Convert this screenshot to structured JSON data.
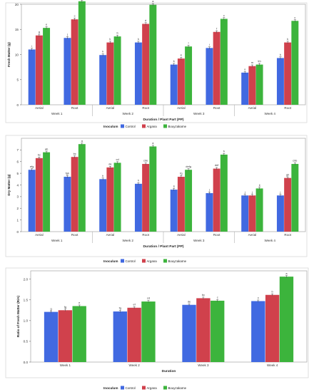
{
  "figure": {
    "legend_title": "Inoculum",
    "legend_labels": [
      "Control",
      "Argana",
      "Bouyzakarne"
    ],
    "colors": [
      "#4169E1",
      "#D0414C",
      "#3CB43C"
    ]
  },
  "chart_data": [
    {
      "type": "bar",
      "ylabel": "Fresh Matter (g)",
      "xlabel": "Duration / Plant Part (PP)",
      "ylim": [
        0,
        20
      ],
      "yticks": [
        0,
        5,
        10,
        15,
        20
      ],
      "groups": [
        "Week 1",
        "Week 2",
        "Week 3",
        "Week 4"
      ],
      "categories": [
        "Aerial",
        "Root",
        "Aerial",
        "Root",
        "Aerial",
        "Root",
        "Aerial",
        "Root"
      ],
      "series": [
        {
          "name": "Control",
          "values": [
            11.0,
            13.3,
            9.9,
            12.4,
            8.0,
            11.3,
            6.4,
            9.3
          ],
          "labels": [
            "i",
            "j",
            "k",
            "k",
            "k",
            "i",
            "o",
            "k"
          ]
        },
        {
          "name": "Argana",
          "values": [
            13.8,
            17.0,
            12.4,
            16.1,
            9.2,
            14.5,
            7.7,
            12.4
          ],
          "labels": [
            "g",
            "c",
            "k",
            "d",
            "k",
            "f",
            "m",
            "k"
          ]
        },
        {
          "name": "Bouyzakarne",
          "values": [
            15.3,
            20.6,
            13.6,
            19.9,
            11.6,
            17.1,
            8.0,
            16.7
          ],
          "labels": [
            "e",
            "a",
            "b",
            "a",
            "l",
            "c",
            "lm",
            "c"
          ]
        }
      ]
    },
    {
      "type": "bar",
      "ylabel": "Dry Matter (g)",
      "xlabel": "Duration / Plant Part (PP)",
      "ylim": [
        0,
        8
      ],
      "yticks": [
        0,
        1,
        2,
        3,
        4,
        5,
        6,
        7
      ],
      "groups": [
        "Week 1",
        "Week 2",
        "Week 3",
        "Week 4"
      ],
      "categories": [
        "Aerial",
        "Root",
        "Aerial",
        "Root",
        "Aerial",
        "Root",
        "Aerial",
        "Root"
      ],
      "series": [
        {
          "name": "Control",
          "values": [
            5.3,
            4.7,
            4.5,
            4.1,
            3.6,
            3.3,
            3.1,
            3.1
          ],
          "labels": [
            "efg",
            "fgh",
            "h",
            "h",
            "ij",
            "j",
            "j",
            "j"
          ]
        },
        {
          "name": "Argana",
          "values": [
            6.3,
            6.4,
            5.5,
            5.8,
            4.7,
            5.4,
            3.1,
            4.6
          ],
          "labels": [
            "bc",
            "bc",
            "de",
            "cde",
            "fg",
            "def",
            "j",
            "gh"
          ]
        },
        {
          "name": "Bouyzakarne",
          "values": [
            6.8,
            7.5,
            5.9,
            7.3,
            5.3,
            6.6,
            3.7,
            5.8
          ],
          "labels": [
            "ab",
            "a",
            "cd",
            "a",
            "defg",
            "b",
            "ij",
            "cde"
          ]
        }
      ]
    },
    {
      "type": "bar",
      "ylabel": "Ratio of Fresh Matter (R/A)",
      "xlabel": "Duration",
      "ylim": [
        0,
        2.2
      ],
      "yticks": [
        0.0,
        0.5,
        1.0,
        1.5,
        2.0
      ],
      "groups": [],
      "categories": [
        "Week 1",
        "Week 2",
        "Week 3",
        "Week 4"
      ],
      "series": [
        {
          "name": "Control",
          "values": [
            1.21,
            1.22,
            1.38,
            1.47
          ],
          "labels": [
            "g",
            "fg",
            "de",
            "c"
          ]
        },
        {
          "name": "Argana",
          "values": [
            1.25,
            1.31,
            1.54,
            1.62
          ],
          "labels": [
            "fg",
            "ef",
            "bc",
            "b"
          ]
        },
        {
          "name": "Bouyzakarne",
          "values": [
            1.35,
            1.46,
            1.48,
            2.06
          ],
          "labels": [
            "e",
            "cd",
            "c",
            "a"
          ]
        }
      ]
    }
  ]
}
